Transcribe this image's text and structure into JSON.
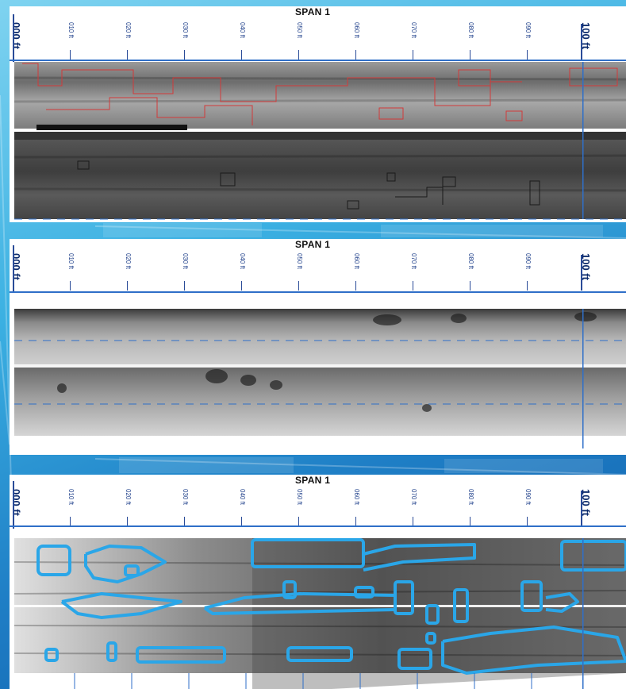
{
  "panels": [
    {
      "title": "SPAN 1",
      "type": "ground-penetrating-radar-with-delamination-outlines"
    },
    {
      "title": "SPAN 1",
      "type": "grayscale-radar-map"
    },
    {
      "title": "SPAN 1",
      "type": "infrared-with-defect-outlines"
    }
  ],
  "ruler": {
    "start_label": "000 ft",
    "end_label": "100 ft",
    "minor_labels": [
      "010 ft",
      "020 ft",
      "030 ft",
      "040 ft",
      "050 ft",
      "060 ft",
      "070 ft",
      "080 ft",
      "090 ft"
    ]
  },
  "colors": {
    "background": "#2a8fd4",
    "ruler": "#1e3f8a",
    "baseline": "#2f6fc8",
    "outline_red": "#d23a3a",
    "outline_dark": "#1a1a1a",
    "outline_blue": "#2aa6e8"
  }
}
